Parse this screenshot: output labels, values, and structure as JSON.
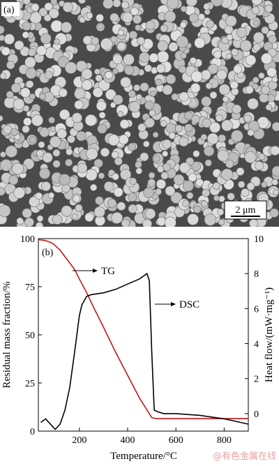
{
  "sem_panel": {
    "label": "(a)",
    "scale_bar": "2 μm",
    "colors": {
      "background": "#4a4a4a",
      "particle": "#cfcfcf",
      "particle_edge": "#6a6a6a"
    }
  },
  "chart_panel": {
    "label": "(b)",
    "watermark": "@有色金属在线"
  },
  "chart_data": {
    "type": "line",
    "xlabel": "Temperature/°C",
    "ylabel_left": "Residual mass fraction/%",
    "ylabel_right": "Heat flow/(mW·mg⁻¹)",
    "xlim": [
      30,
      900
    ],
    "ylim_left": [
      0,
      100
    ],
    "ylim_right": [
      -1,
      10
    ],
    "x_ticks": [
      200,
      400,
      600,
      800
    ],
    "y_ticks_left": [
      0,
      25,
      50,
      75,
      100
    ],
    "y_ticks_right": [
      0,
      2,
      4,
      6,
      8,
      10
    ],
    "grid": false,
    "series": [
      {
        "name": "TG",
        "axis": "left",
        "color": "#c0161a",
        "x": [
          30,
          60,
          90,
          120,
          150,
          180,
          200,
          230,
          260,
          300,
          350,
          400,
          450,
          500,
          520,
          600,
          700,
          800,
          900
        ],
        "y": [
          99.5,
          99,
          97.5,
          94,
          89,
          84,
          79,
          72,
          64,
          54,
          41,
          29,
          17,
          7,
          6.5,
          6.5,
          6.5,
          6.5,
          6.5
        ]
      },
      {
        "name": "DSC",
        "axis": "right",
        "color": "#000000",
        "x": [
          40,
          60,
          80,
          100,
          120,
          140,
          160,
          180,
          200,
          210,
          230,
          250,
          300,
          350,
          400,
          450,
          480,
          490,
          500,
          510,
          525,
          550,
          600,
          700,
          800,
          900
        ],
        "y": [
          -0.5,
          -0.3,
          -0.6,
          -0.9,
          -0.6,
          0.2,
          1.5,
          3.5,
          5.6,
          6.2,
          6.7,
          6.8,
          6.9,
          7.1,
          7.4,
          7.7,
          8.0,
          7.6,
          3.5,
          0.2,
          0.1,
          0.0,
          0.0,
          -0.1,
          -0.3,
          -0.6
        ]
      }
    ],
    "annotations": [
      {
        "text": "TG",
        "series": "TG"
      },
      {
        "text": "DSC",
        "series": "DSC"
      }
    ]
  }
}
